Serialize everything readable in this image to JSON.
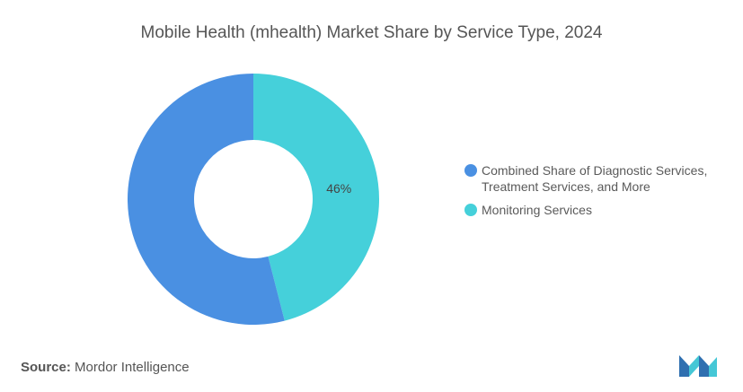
{
  "title": "Mobile Health (mhealth) Market Share by Service Type, 2024",
  "chart_data": {
    "type": "pie",
    "donut": true,
    "categories": [
      "Combined Share of Diagnostic Services, Treatment Services, and More",
      "Monitoring Services"
    ],
    "values": [
      54,
      46
    ],
    "data_labels": [
      "",
      "46%"
    ],
    "colors": [
      "#4a90e2",
      "#45d0da"
    ],
    "legend_placement": "right"
  },
  "source": {
    "label": "Source:",
    "text": "Mordor Intelligence"
  },
  "logo": {
    "icon": "mordor-intelligence-logo",
    "colors": [
      "#2f6fb0",
      "#45c7d6"
    ]
  }
}
